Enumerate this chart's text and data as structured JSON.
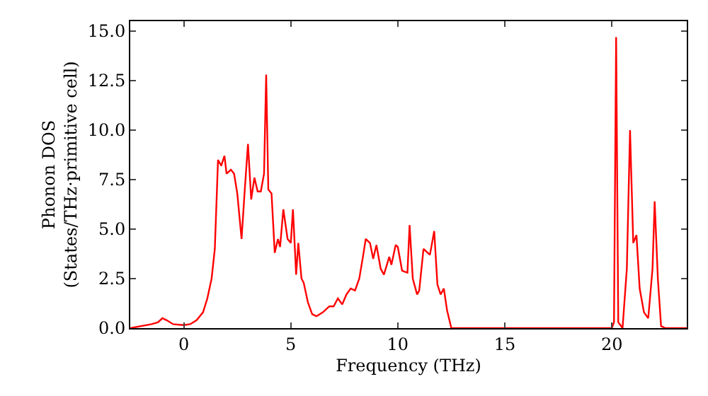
{
  "chart_data": {
    "type": "line",
    "xlabel": "Frequency (THz)",
    "ylabel": "Phonon DOS\n(States/THz·primitive cell)",
    "x": [
      -2.5,
      -1.5,
      -1.2,
      -1.0,
      -0.8,
      -0.5,
      0,
      0.3,
      0.6,
      0.9,
      1.1,
      1.3,
      1.45,
      1.6,
      1.75,
      1.9,
      2.0,
      2.2,
      2.35,
      2.5,
      2.7,
      2.85,
      3.0,
      3.15,
      3.3,
      3.45,
      3.6,
      3.75,
      3.85,
      3.95,
      4.1,
      4.25,
      4.4,
      4.5,
      4.65,
      4.85,
      5.0,
      5.1,
      5.25,
      5.35,
      5.5,
      5.6,
      5.8,
      6.0,
      6.2,
      6.5,
      6.8,
      7.0,
      7.2,
      7.4,
      7.6,
      7.8,
      8.0,
      8.2,
      8.4,
      8.5,
      8.7,
      8.85,
      9.0,
      9.2,
      9.35,
      9.6,
      9.7,
      9.9,
      10.0,
      10.2,
      10.45,
      10.55,
      10.7,
      10.9,
      11.0,
      11.2,
      11.5,
      11.7,
      11.85,
      12.0,
      12.15,
      12.3,
      12.5,
      20.0,
      20.1,
      20.2,
      20.3,
      20.5,
      20.7,
      20.85,
      21.0,
      21.15,
      21.3,
      21.5,
      21.7,
      21.9,
      22.0,
      22.15,
      22.3,
      22.5,
      23.5
    ],
    "series": [
      {
        "color": "#ff0000",
        "values": [
          0,
          0.2,
          0.3,
          0.5,
          0.4,
          0.2,
          0.15,
          0.2,
          0.4,
          0.8,
          1.5,
          2.5,
          4.0,
          8.5,
          8.2,
          8.7,
          7.8,
          8.0,
          7.8,
          6.8,
          4.5,
          7.0,
          9.3,
          6.5,
          7.6,
          6.9,
          6.9,
          7.8,
          12.8,
          7.0,
          6.8,
          3.8,
          4.5,
          4.1,
          6.0,
          4.5,
          4.3,
          6.0,
          2.7,
          4.3,
          2.5,
          2.3,
          1.3,
          0.7,
          0.6,
          0.8,
          1.1,
          1.1,
          1.5,
          1.2,
          1.7,
          2.0,
          1.9,
          2.5,
          3.8,
          4.5,
          4.3,
          3.5,
          4.2,
          3.0,
          2.7,
          3.6,
          3.2,
          4.2,
          4.1,
          2.9,
          2.8,
          5.2,
          2.5,
          1.7,
          1.9,
          4.0,
          3.7,
          4.9,
          2.2,
          1.7,
          2.0,
          0.9,
          0,
          0,
          0.3,
          14.7,
          0.3,
          0,
          3.0,
          10.0,
          4.3,
          4.7,
          2.0,
          0.8,
          0.5,
          3.0,
          6.4,
          2.5,
          0.1,
          0,
          0
        ]
      }
    ],
    "xlim": [
      -2.5,
      23.5
    ],
    "ylim": [
      0,
      15.5
    ],
    "xticks": [
      0,
      5,
      10,
      15,
      20
    ],
    "yticks": [
      {
        "value": 0,
        "label": "0.0"
      },
      {
        "value": 2.5,
        "label": "2.5"
      },
      {
        "value": 5,
        "label": "5.0"
      },
      {
        "value": 7.5,
        "label": "7.5"
      },
      {
        "value": 10,
        "label": "10.0"
      },
      {
        "value": 12.5,
        "label": "12.5"
      },
      {
        "value": 15,
        "label": "15.0"
      }
    ],
    "marker": "none",
    "line_style": "solid"
  }
}
